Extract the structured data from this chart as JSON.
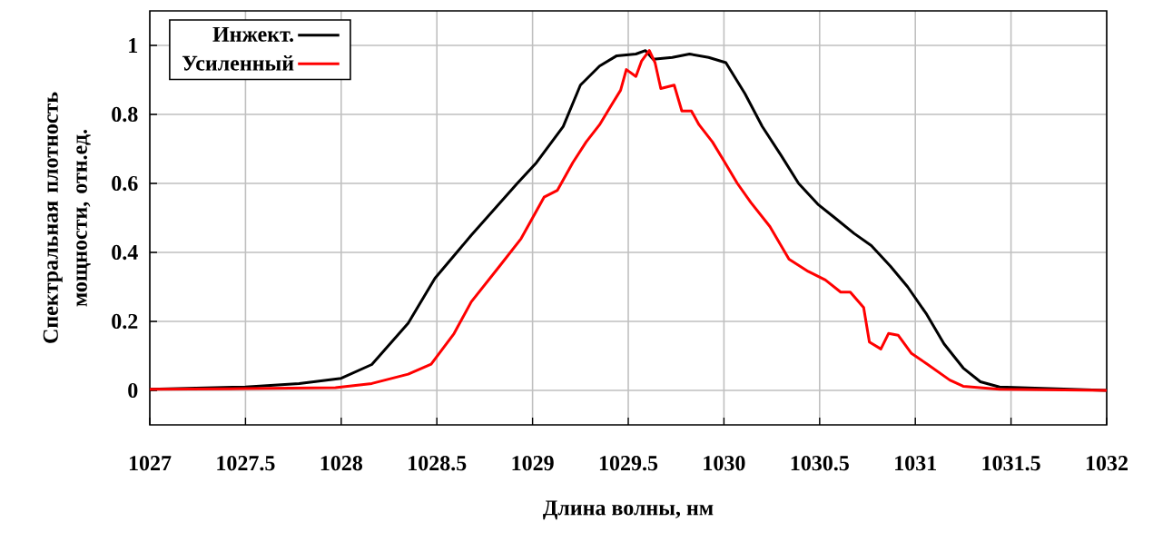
{
  "chart_data": {
    "type": "line",
    "xlabel": "Длина волны, нм",
    "ylabel": "Спектральная плотность мощности, отн.ед.",
    "xlim": [
      1027,
      1032
    ],
    "ylim": [
      -0.1,
      1.1
    ],
    "xticks": [
      1027,
      1027.5,
      1028,
      1028.5,
      1029,
      1029.5,
      1030,
      1030.5,
      1031,
      1031.5,
      1032
    ],
    "yticks": [
      0,
      0.2,
      0.4,
      0.6,
      0.8,
      1
    ],
    "grid": true,
    "legend": "top left",
    "marker": "none",
    "line_style": "solid",
    "series": [
      {
        "name": "Инжект.",
        "color": "#000000",
        "x": [
          1027.0,
          1027.5,
          1027.78,
          1028.0,
          1028.16,
          1028.35,
          1028.49,
          1028.68,
          1028.92,
          1029.02,
          1029.16,
          1029.25,
          1029.35,
          1029.44,
          1029.54,
          1029.59,
          1029.63,
          1029.73,
          1029.82,
          1029.92,
          1030.01,
          1030.11,
          1030.2,
          1030.3,
          1030.39,
          1030.49,
          1030.58,
          1030.68,
          1030.77,
          1030.87,
          1030.96,
          1031.06,
          1031.15,
          1031.25,
          1031.34,
          1031.44,
          1032.0
        ],
        "values": [
          0.003,
          0.01,
          0.02,
          0.035,
          0.075,
          0.195,
          0.325,
          0.45,
          0.6,
          0.66,
          0.765,
          0.885,
          0.94,
          0.97,
          0.975,
          0.985,
          0.96,
          0.965,
          0.975,
          0.965,
          0.95,
          0.86,
          0.765,
          0.68,
          0.6,
          0.54,
          0.5,
          0.455,
          0.42,
          0.36,
          0.3,
          0.22,
          0.135,
          0.065,
          0.025,
          0.01,
          0.0
        ]
      },
      {
        "name": "Усиленный",
        "color": "#ff0000",
        "x": [
          1027.0,
          1027.5,
          1027.97,
          1028.16,
          1028.35,
          1028.47,
          1028.59,
          1028.68,
          1028.83,
          1028.94,
          1029.06,
          1029.13,
          1029.21,
          1029.28,
          1029.35,
          1029.41,
          1029.46,
          1029.49,
          1029.54,
          1029.57,
          1029.61,
          1029.64,
          1029.67,
          1029.74,
          1029.78,
          1029.83,
          1029.87,
          1029.94,
          1030.0,
          1030.07,
          1030.14,
          1030.24,
          1030.34,
          1030.44,
          1030.53,
          1030.61,
          1030.66,
          1030.73,
          1030.76,
          1030.82,
          1030.86,
          1030.91,
          1030.98,
          1031.06,
          1031.18,
          1031.25,
          1031.44,
          1032.0
        ],
        "values": [
          0.003,
          0.005,
          0.008,
          0.02,
          0.047,
          0.076,
          0.165,
          0.257,
          0.362,
          0.44,
          0.56,
          0.58,
          0.66,
          0.72,
          0.77,
          0.825,
          0.87,
          0.93,
          0.91,
          0.955,
          0.985,
          0.95,
          0.875,
          0.885,
          0.81,
          0.81,
          0.77,
          0.72,
          0.665,
          0.6,
          0.545,
          0.475,
          0.38,
          0.345,
          0.32,
          0.285,
          0.285,
          0.24,
          0.14,
          0.12,
          0.165,
          0.16,
          0.107,
          0.077,
          0.03,
          0.012,
          0.003,
          0.0
        ]
      }
    ]
  }
}
